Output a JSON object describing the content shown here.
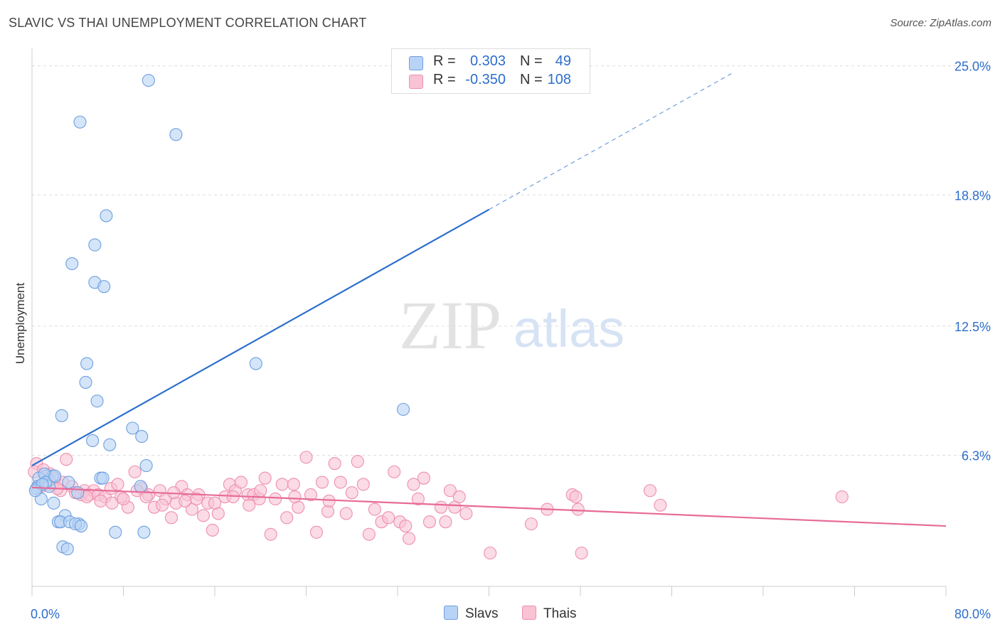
{
  "header": {
    "title": "SLAVIC VS THAI UNEMPLOYMENT CORRELATION CHART",
    "source": "Source: ZipAtlas.com"
  },
  "watermark": {
    "zip": "ZIP",
    "atlas": "atlas"
  },
  "legend_top": {
    "rows": [
      {
        "r_label": "R =",
        "r_value": "0.303",
        "n_label": "N =",
        "n_value": "49"
      },
      {
        "r_label": "R =",
        "r_value": "-0.350",
        "n_label": "N =",
        "n_value": "108"
      }
    ]
  },
  "legend_bottom": {
    "items": [
      {
        "label": "Slavs"
      },
      {
        "label": "Thais"
      }
    ]
  },
  "colors": {
    "slavs_fill": "#b8d3f5",
    "slavs_stroke": "#6f9fdf",
    "slavs_line": "#2b6fcd",
    "thais_fill": "#f9c3d4",
    "thais_stroke": "#ee8fae",
    "thais_line": "#e76a98",
    "axis_text": "#2d6ecb",
    "grid": "#dddddd"
  },
  "chart_data": {
    "type": "scatter",
    "title": "SLAVIC VS THAI UNEMPLOYMENT CORRELATION CHART",
    "xlabel": "",
    "ylabel": "Unemployment",
    "xlim": [
      0,
      80
    ],
    "ylim": [
      0,
      25.5
    ],
    "x_tick_labels": [
      "0.0%",
      "80.0%"
    ],
    "y_ticks": [
      6.3,
      12.5,
      18.8,
      25.0
    ],
    "y_tick_labels": [
      "6.3%",
      "12.5%",
      "18.8%",
      "25.0%"
    ],
    "grid": true,
    "legend_placement": "top-center",
    "series": [
      {
        "name": "Slavs",
        "r": 0.303,
        "n": 49,
        "trend": {
          "x0": 0,
          "y0": 5.8,
          "x1": 40,
          "y1": 18.1,
          "dashed_to_x": 61.5
        },
        "points": [
          [
            10.2,
            24.3
          ],
          [
            4.2,
            22.3
          ],
          [
            12.6,
            21.7
          ],
          [
            6.5,
            17.8
          ],
          [
            5.5,
            16.4
          ],
          [
            3.5,
            15.5
          ],
          [
            5.5,
            14.6
          ],
          [
            6.3,
            14.4
          ],
          [
            4.8,
            10.7
          ],
          [
            19.6,
            10.7
          ],
          [
            4.7,
            9.8
          ],
          [
            5.7,
            8.9
          ],
          [
            2.6,
            8.2
          ],
          [
            32.5,
            8.5
          ],
          [
            8.8,
            7.6
          ],
          [
            9.6,
            7.2
          ],
          [
            5.3,
            7.0
          ],
          [
            6.8,
            6.8
          ],
          [
            10.0,
            5.8
          ],
          [
            6.0,
            5.2
          ],
          [
            6.2,
            5.2
          ],
          [
            1.2,
            5.3
          ],
          [
            1.5,
            5.1
          ],
          [
            1.8,
            5.3
          ],
          [
            0.6,
            5.2
          ],
          [
            1.1,
            5.4
          ],
          [
            3.2,
            5.0
          ],
          [
            0.5,
            4.8
          ],
          [
            9.5,
            4.8
          ],
          [
            1.5,
            4.8
          ],
          [
            0.4,
            4.7
          ],
          [
            4.0,
            4.5
          ],
          [
            0.8,
            4.2
          ],
          [
            1.9,
            4.0
          ],
          [
            2.9,
            3.4
          ],
          [
            2.3,
            3.1
          ],
          [
            2.5,
            3.1
          ],
          [
            3.3,
            3.1
          ],
          [
            4.1,
            3.0
          ],
          [
            3.8,
            3.0
          ],
          [
            4.3,
            2.9
          ],
          [
            7.3,
            2.6
          ],
          [
            9.8,
            2.6
          ],
          [
            2.7,
            1.9
          ],
          [
            3.1,
            1.8
          ],
          [
            1.2,
            5.0
          ],
          [
            0.9,
            4.9
          ],
          [
            2.0,
            5.3
          ],
          [
            0.3,
            4.6
          ]
        ]
      },
      {
        "name": "Thais",
        "r": -0.35,
        "n": 108,
        "trend": {
          "x0": 0,
          "y0": 4.75,
          "x1": 80,
          "y1": 2.9
        },
        "points": [
          [
            0.4,
            5.9
          ],
          [
            0.2,
            5.5
          ],
          [
            1.0,
            5.6
          ],
          [
            1.6,
            5.4
          ],
          [
            3.0,
            6.1
          ],
          [
            2.7,
            5.0
          ],
          [
            0.8,
            4.8
          ],
          [
            2.5,
            4.6
          ],
          [
            3.5,
            4.8
          ],
          [
            4.3,
            4.4
          ],
          [
            4.6,
            4.6
          ],
          [
            5.0,
            4.4
          ],
          [
            5.4,
            4.6
          ],
          [
            5.8,
            4.4
          ],
          [
            6.4,
            4.3
          ],
          [
            6.9,
            4.7
          ],
          [
            7.5,
            4.9
          ],
          [
            7.8,
            4.3
          ],
          [
            8.4,
            3.8
          ],
          [
            9.0,
            5.5
          ],
          [
            9.6,
            4.7
          ],
          [
            10.2,
            4.4
          ],
          [
            10.7,
            3.8
          ],
          [
            11.2,
            4.6
          ],
          [
            11.7,
            4.2
          ],
          [
            12.2,
            3.3
          ],
          [
            12.6,
            4.0
          ],
          [
            13.1,
            4.8
          ],
          [
            13.6,
            4.4
          ],
          [
            14.0,
            3.7
          ],
          [
            14.6,
            4.4
          ],
          [
            15.0,
            3.4
          ],
          [
            15.4,
            4.0
          ],
          [
            15.8,
            2.7
          ],
          [
            16.3,
            3.5
          ],
          [
            16.9,
            4.3
          ],
          [
            17.3,
            4.9
          ],
          [
            17.8,
            4.6
          ],
          [
            18.3,
            5.0
          ],
          [
            18.9,
            4.4
          ],
          [
            19.4,
            4.4
          ],
          [
            19.9,
            4.2
          ],
          [
            20.4,
            5.2
          ],
          [
            20.9,
            2.5
          ],
          [
            21.3,
            4.2
          ],
          [
            21.9,
            4.9
          ],
          [
            22.3,
            3.3
          ],
          [
            22.9,
            4.9
          ],
          [
            23.3,
            3.8
          ],
          [
            24.0,
            6.2
          ],
          [
            24.4,
            4.4
          ],
          [
            24.9,
            2.6
          ],
          [
            25.4,
            5.0
          ],
          [
            25.9,
            3.6
          ],
          [
            26.5,
            5.9
          ],
          [
            27.0,
            5.0
          ],
          [
            27.5,
            3.5
          ],
          [
            28.0,
            4.5
          ],
          [
            28.5,
            6.0
          ],
          [
            29.0,
            4.9
          ],
          [
            29.5,
            2.5
          ],
          [
            30.0,
            3.7
          ],
          [
            30.6,
            3.1
          ],
          [
            31.2,
            3.3
          ],
          [
            31.7,
            5.5
          ],
          [
            32.2,
            3.1
          ],
          [
            32.7,
            2.9
          ],
          [
            33.0,
            2.3
          ],
          [
            33.4,
            4.9
          ],
          [
            33.8,
            4.2
          ],
          [
            34.3,
            5.2
          ],
          [
            34.8,
            3.1
          ],
          [
            35.8,
            3.8
          ],
          [
            36.2,
            3.1
          ],
          [
            36.6,
            4.6
          ],
          [
            37.0,
            3.8
          ],
          [
            37.4,
            4.3
          ],
          [
            38.0,
            3.5
          ],
          [
            40.1,
            1.6
          ],
          [
            43.7,
            3.0
          ],
          [
            45.1,
            3.7
          ],
          [
            47.3,
            4.4
          ],
          [
            47.6,
            4.3
          ],
          [
            47.8,
            3.7
          ],
          [
            48.1,
            1.6
          ],
          [
            54.1,
            4.6
          ],
          [
            55.0,
            3.9
          ],
          [
            70.9,
            4.3
          ],
          [
            2.0,
            5.2
          ],
          [
            1.4,
            4.9
          ],
          [
            2.2,
            4.7
          ],
          [
            3.8,
            4.5
          ],
          [
            4.8,
            4.3
          ],
          [
            6.0,
            4.1
          ],
          [
            7.0,
            4.0
          ],
          [
            8.0,
            4.2
          ],
          [
            9.2,
            4.6
          ],
          [
            10.0,
            4.3
          ],
          [
            11.4,
            3.9
          ],
          [
            12.4,
            4.5
          ],
          [
            13.4,
            4.1
          ],
          [
            14.4,
            4.2
          ],
          [
            16.0,
            4.0
          ],
          [
            17.6,
            4.3
          ],
          [
            19.0,
            3.9
          ],
          [
            20.0,
            4.6
          ],
          [
            23.0,
            4.3
          ],
          [
            26.0,
            4.1
          ]
        ]
      }
    ]
  }
}
